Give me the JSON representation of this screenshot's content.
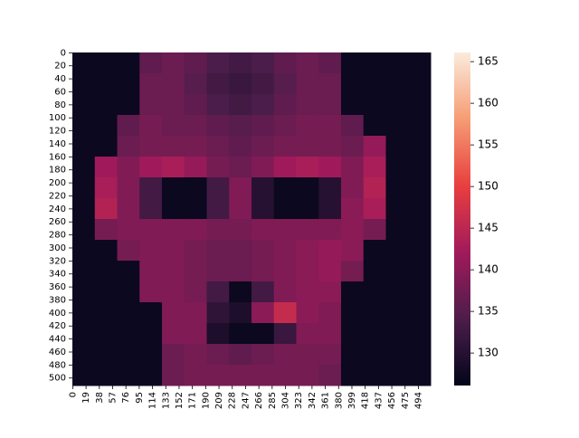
{
  "chart_data": {
    "type": "heatmap",
    "xlim": [
      0,
      512
    ],
    "ylim": [
      0,
      512
    ],
    "xticks": [
      0,
      19,
      38,
      57,
      76,
      95,
      114,
      133,
      152,
      171,
      190,
      209,
      228,
      247,
      266,
      285,
      304,
      323,
      342,
      361,
      380,
      399,
      418,
      437,
      456,
      475,
      494
    ],
    "yticks": [
      0,
      20,
      40,
      60,
      80,
      100,
      120,
      140,
      160,
      180,
      200,
      220,
      240,
      260,
      280,
      300,
      320,
      340,
      360,
      380,
      400,
      420,
      440,
      460,
      480,
      500
    ],
    "clim": [
      126.1,
      166.1
    ],
    "cticks": [
      130,
      135,
      140,
      145,
      150,
      155,
      160,
      165
    ],
    "colorscale": [
      "#03051a",
      "#4c1d4b",
      "#a11a5b",
      "#e83f3f",
      "#f69c73",
      "#faebdd"
    ],
    "z": [
      [
        127,
        127,
        127,
        136,
        137,
        136,
        134,
        133,
        134,
        136,
        137,
        136,
        127,
        127,
        127,
        127
      ],
      [
        127,
        127,
        127,
        137,
        137,
        135,
        133,
        132,
        133,
        135,
        137,
        137,
        127,
        127,
        127,
        127
      ],
      [
        127,
        127,
        127,
        137,
        137,
        136,
        134,
        133,
        134,
        136,
        137,
        137,
        127,
        127,
        127,
        127
      ],
      [
        127,
        127,
        136,
        138,
        137,
        137,
        136,
        135,
        136,
        137,
        138,
        138,
        136,
        127,
        127,
        127
      ],
      [
        127,
        127,
        137,
        138,
        138,
        138,
        137,
        136,
        137,
        138,
        138,
        138,
        137,
        141,
        127,
        127
      ],
      [
        127,
        142,
        139,
        142,
        143,
        141,
        138,
        137,
        139,
        142,
        143,
        142,
        139,
        143,
        127,
        127
      ],
      [
        127,
        143,
        139,
        133,
        127,
        127,
        133,
        139,
        130,
        127,
        127,
        130,
        139,
        144,
        127,
        127
      ],
      [
        127,
        144,
        139,
        133,
        127,
        127,
        133,
        139,
        130,
        127,
        127,
        130,
        140,
        143,
        127,
        127
      ],
      [
        127,
        138,
        139,
        139,
        139,
        139,
        138,
        138,
        139,
        139,
        139,
        139,
        140,
        138,
        127,
        127
      ],
      [
        127,
        127,
        138,
        139,
        139,
        138,
        137,
        137,
        138,
        139,
        140,
        141,
        140,
        127,
        127,
        127
      ],
      [
        127,
        127,
        127,
        139,
        139,
        138,
        137,
        137,
        138,
        139,
        140,
        141,
        138,
        127,
        127,
        127
      ],
      [
        127,
        127,
        127,
        139,
        139,
        138,
        133,
        127,
        133,
        139,
        140,
        140,
        127,
        127,
        127,
        127
      ],
      [
        127,
        127,
        127,
        127,
        139,
        139,
        131,
        129,
        140,
        146,
        140,
        139,
        127,
        127,
        127,
        127
      ],
      [
        127,
        127,
        127,
        127,
        139,
        139,
        129,
        127,
        127,
        132,
        139,
        139,
        127,
        127,
        127,
        127
      ],
      [
        127,
        127,
        127,
        127,
        137,
        138,
        137,
        136,
        137,
        138,
        138,
        138,
        127,
        127,
        127,
        127
      ],
      [
        127,
        127,
        127,
        127,
        137,
        138,
        138,
        138,
        138,
        138,
        138,
        137,
        127,
        127,
        127,
        127
      ]
    ]
  }
}
